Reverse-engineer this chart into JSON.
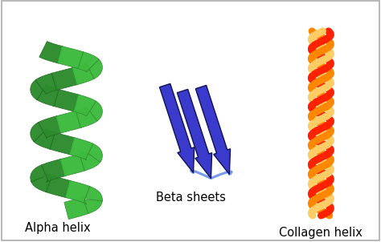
{
  "bg_color": "#ffffff",
  "border_color": "#aaaaaa",
  "label_alpha": "Alpha helix",
  "label_beta": "Beta sheets",
  "label_collagen": "Collagen helix",
  "label_fontsize": 10.5,
  "alpha_dark": "#1f6b1f",
  "alpha_mid": "#2d8a2d",
  "alpha_light": "#3dba3d",
  "beta_fill": "#3a3acc",
  "beta_edge": "#111155",
  "beta_loop": "#7799ee",
  "col1": "#ff2200",
  "col2": "#ff8800",
  "col3": "#ffcc66"
}
